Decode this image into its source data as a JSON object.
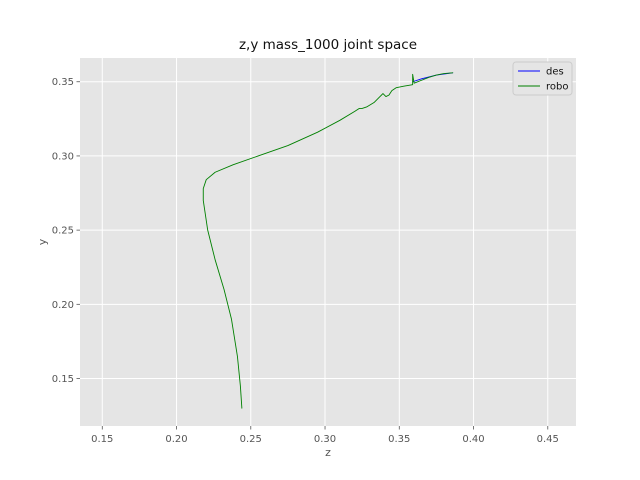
{
  "chart_data": {
    "type": "line",
    "title": "z,y mass_1000 joint space",
    "xlabel": "z",
    "ylabel": "y",
    "xlim": [
      0.135,
      0.469
    ],
    "ylim": [
      0.118,
      0.366
    ],
    "xticks": [
      0.15,
      0.2,
      0.25,
      0.3,
      0.35,
      0.4,
      0.45
    ],
    "xtick_labels": [
      "0.15",
      "0.20",
      "0.25",
      "0.30",
      "0.35",
      "0.40",
      "0.45"
    ],
    "yticks": [
      0.15,
      0.2,
      0.25,
      0.3,
      0.35
    ],
    "ytick_labels": [
      "0.15",
      "0.20",
      "0.25",
      "0.30",
      "0.35"
    ],
    "grid": true,
    "legend_position": "top-right",
    "series": [
      {
        "name": "des",
        "color": "#0000ff",
        "points": [
          [
            0.359,
            0.35
          ],
          [
            0.365,
            0.352
          ],
          [
            0.375,
            0.3545
          ],
          [
            0.386,
            0.356
          ]
        ]
      },
      {
        "name": "robo",
        "color": "#008000",
        "points": [
          [
            0.244,
            0.13
          ],
          [
            0.243,
            0.145
          ],
          [
            0.241,
            0.165
          ],
          [
            0.237,
            0.19
          ],
          [
            0.232,
            0.21
          ],
          [
            0.226,
            0.23
          ],
          [
            0.221,
            0.25
          ],
          [
            0.218,
            0.27
          ],
          [
            0.218,
            0.278
          ],
          [
            0.22,
            0.284
          ],
          [
            0.226,
            0.289
          ],
          [
            0.238,
            0.294
          ],
          [
            0.255,
            0.3
          ],
          [
            0.275,
            0.307
          ],
          [
            0.295,
            0.316
          ],
          [
            0.31,
            0.324
          ],
          [
            0.32,
            0.33
          ],
          [
            0.323,
            0.332
          ],
          [
            0.325,
            0.332
          ],
          [
            0.328,
            0.333
          ],
          [
            0.333,
            0.336
          ],
          [
            0.337,
            0.34
          ],
          [
            0.339,
            0.342
          ],
          [
            0.341,
            0.34
          ],
          [
            0.343,
            0.341
          ],
          [
            0.345,
            0.344
          ],
          [
            0.348,
            0.346
          ],
          [
            0.353,
            0.347
          ],
          [
            0.359,
            0.348
          ],
          [
            0.359,
            0.355
          ],
          [
            0.36,
            0.349
          ],
          [
            0.365,
            0.351
          ],
          [
            0.37,
            0.353
          ],
          [
            0.375,
            0.3545
          ],
          [
            0.38,
            0.3555
          ],
          [
            0.386,
            0.356
          ]
        ]
      }
    ]
  }
}
